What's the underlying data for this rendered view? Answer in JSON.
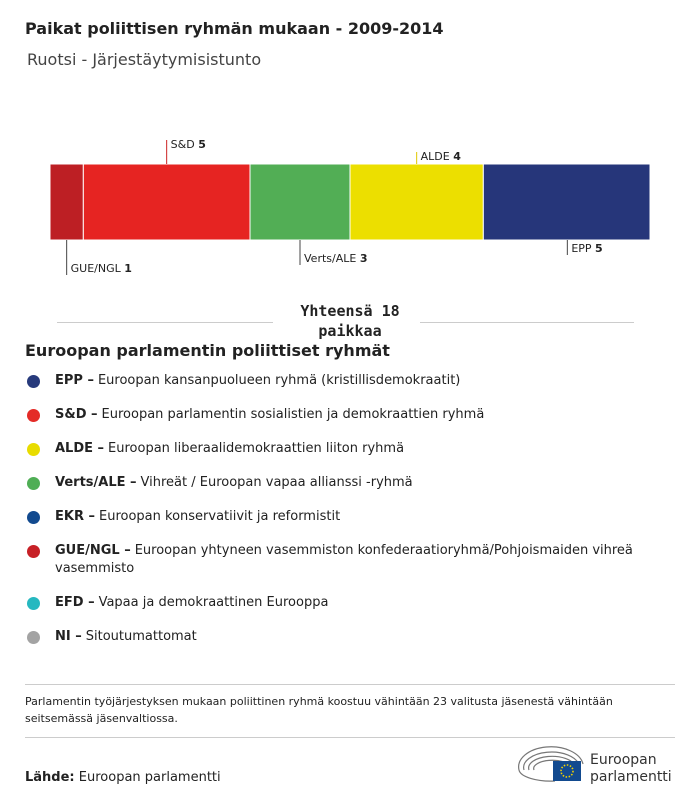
{
  "chart_data": {
    "type": "bar",
    "title": "Paikat poliittisen ryhmän mukaan - 2009-2014",
    "subtitle": "Ruotsi - Järjestäytymisistunto",
    "categories": [
      "GUE/NGL",
      "S&D",
      "Verts/ALE",
      "ALDE",
      "EPP"
    ],
    "values": [
      1,
      5,
      3,
      4,
      5
    ],
    "colors": [
      "#bd1f24",
      "#e62422",
      "#52ae55",
      "#ecdf00",
      "#26367a"
    ],
    "total_label": "Yhteensä 18 paikkaa"
  },
  "legend": {
    "title": "Euroopan parlamentin poliittiset ryhmät",
    "items": [
      {
        "abbr": "EPP –",
        "text": "Euroopan kansanpuolueen ryhmä (kristillisdemokraatit)",
        "color": "#273a7c"
      },
      {
        "abbr": "S&D –",
        "text": "Euroopan parlamentin sosialistien ja demokraattien ryhmä",
        "color": "#e42b27"
      },
      {
        "abbr": "ALDE –",
        "text": "Euroopan liberaalidemokraattien liiton ryhmä",
        "color": "#e8dc00"
      },
      {
        "abbr": "Verts/ALE –",
        "text": "Vihreät / Euroopan vapaa allianssi -ryhmä",
        "color": "#4fae55"
      },
      {
        "abbr": "EKR –",
        "text": "Euroopan konservatiivit ja reformistit",
        "color": "#124a8f"
      },
      {
        "abbr": "GUE/NGL –",
        "text": "Euroopan yhtyneen vasemmiston konfederaatioryhmä/Pohjoismaiden vihreä vasemmisto",
        "color": "#c72026"
      },
      {
        "abbr": "EFD –",
        "text": "Vapaa ja demokraattinen Eurooppa",
        "color": "#26b8c0"
      },
      {
        "abbr": "NI –",
        "text": "Sitoutumattomat",
        "color": "#a3a3a3"
      }
    ]
  },
  "footnote": "Parlamentin työjärjestyksen mukaan poliittinen ryhmä koostuu vähintään 23 valitusta jäsenestä vähintään seitsemässä jäsenvaltiossa.",
  "source": {
    "label": "Lähde:",
    "text": "Euroopan parlamentti"
  },
  "logo": [
    "Euroopan",
    "parlamentti"
  ]
}
